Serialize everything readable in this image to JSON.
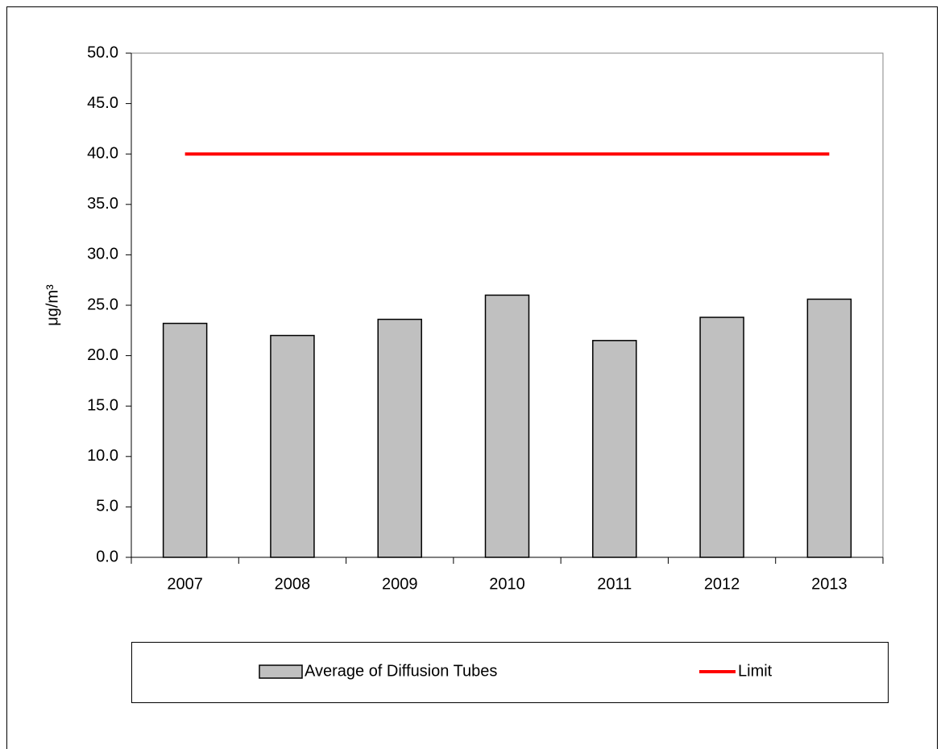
{
  "chart_data": {
    "type": "bar",
    "categories": [
      "2007",
      "2008",
      "2009",
      "2010",
      "2011",
      "2012",
      "2013"
    ],
    "y_label": "μg/m³",
    "ylim": [
      0,
      50
    ],
    "yticks": [
      {
        "value": 0,
        "label": "0.0"
      },
      {
        "value": 5,
        "label": "5.0"
      },
      {
        "value": 10,
        "label": "10.0"
      },
      {
        "value": 15,
        "label": "15.0"
      },
      {
        "value": 20,
        "label": "20.0"
      },
      {
        "value": 25,
        "label": "25.0"
      },
      {
        "value": 30,
        "label": "30.0"
      },
      {
        "value": 35,
        "label": "35.0"
      },
      {
        "value": 40,
        "label": "40.0"
      },
      {
        "value": 45,
        "label": "45.0"
      },
      {
        "value": 50,
        "label": "50.0"
      }
    ],
    "series": [
      {
        "name": "Average of Diffusion Tubes",
        "type": "bar",
        "color": "#c0c0c0",
        "values": [
          23.2,
          22.0,
          23.6,
          26.0,
          21.5,
          23.8,
          25.6
        ]
      },
      {
        "name": "Limit",
        "type": "line",
        "color": "#ff0000",
        "values": [
          40,
          40,
          40,
          40,
          40,
          40,
          40
        ]
      }
    ],
    "legend": "bottom"
  }
}
